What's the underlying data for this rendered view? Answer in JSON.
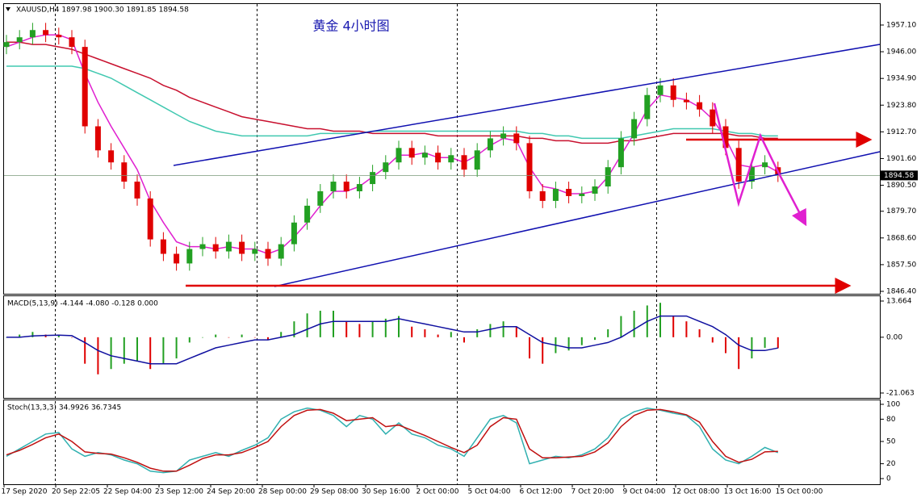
{
  "chart_data": [
    {
      "type": "candlestick",
      "title": "黄金  4小时图",
      "info": "XAUUSD,H4  1897.98 1900.30 1891.85 1894.58",
      "up_color": "#22a022",
      "down_color": "#e00000",
      "open": [
        1948,
        1950,
        1952,
        1955,
        1953,
        1952,
        1948,
        1915,
        1905,
        1900,
        1892,
        1885,
        1868,
        1862,
        1858,
        1864,
        1866,
        1863,
        1867,
        1862,
        1864,
        1860,
        1866,
        1875,
        1882,
        1888,
        1892,
        1888,
        1891,
        1896,
        1900,
        1906,
        1902,
        1904,
        1900,
        1903,
        1897,
        1905,
        1910,
        1912,
        1908,
        1888,
        1884,
        1889,
        1886,
        1887,
        1890,
        1898,
        1910,
        1918,
        1928,
        1932,
        1926,
        1925,
        1922,
        1915,
        1906,
        1892,
        1898,
        1897.98
      ],
      "high": [
        1953,
        1955,
        1958,
        1958,
        1956,
        1955,
        1951,
        1918,
        1908,
        1903,
        1895,
        1888,
        1871,
        1865,
        1867,
        1869,
        1869,
        1870,
        1870,
        1867,
        1867,
        1869,
        1878,
        1885,
        1891,
        1895,
        1895,
        1894,
        1899,
        1903,
        1909,
        1909,
        1907,
        1907,
        1906,
        1906,
        1908,
        1913,
        1915,
        1915,
        1911,
        1891,
        1892,
        1892,
        1890,
        1893,
        1901,
        1913,
        1921,
        1931,
        1935,
        1935,
        1929,
        1928,
        1925,
        1918,
        1909,
        1901,
        1903,
        1900.3
      ],
      "low": [
        1945,
        1947,
        1949,
        1950,
        1949,
        1945,
        1912,
        1902,
        1897,
        1889,
        1882,
        1865,
        1859,
        1855,
        1855,
        1861,
        1860,
        1860,
        1859,
        1859,
        1857,
        1857,
        1863,
        1872,
        1879,
        1885,
        1885,
        1885,
        1888,
        1893,
        1897,
        1899,
        1899,
        1897,
        1897,
        1894,
        1894,
        1902,
        1907,
        1905,
        1885,
        1881,
        1881,
        1883,
        1883,
        1884,
        1887,
        1895,
        1907,
        1915,
        1925,
        1923,
        1922,
        1919,
        1912,
        1903,
        1889,
        1889,
        1895,
        1891.85
      ],
      "close": [
        1950,
        1952,
        1955,
        1953,
        1952,
        1948,
        1915,
        1905,
        1900,
        1892,
        1885,
        1868,
        1862,
        1858,
        1864,
        1866,
        1863,
        1867,
        1862,
        1864,
        1860,
        1866,
        1875,
        1882,
        1888,
        1892,
        1888,
        1891,
        1896,
        1900,
        1906,
        1902,
        1904,
        1900,
        1903,
        1897,
        1905,
        1910,
        1912,
        1908,
        1888,
        1884,
        1889,
        1886,
        1887,
        1890,
        1898,
        1910,
        1918,
        1928,
        1932,
        1926,
        1925,
        1922,
        1915,
        1906,
        1892,
        1898,
        1900,
        1894.58
      ],
      "series": [
        {
          "color": "#c8102e",
          "values": [
            1950,
            1950,
            1949,
            1949,
            1948,
            1947,
            1945,
            1943,
            1941,
            1939,
            1937,
            1935,
            1932,
            1930,
            1927,
            1925,
            1923,
            1921,
            1919,
            1918,
            1917,
            1916,
            1915,
            1914,
            1914,
            1913,
            1913,
            1913,
            1912,
            1912,
            1912,
            1912,
            1912,
            1911,
            1911,
            1911,
            1911,
            1911,
            1911,
            1911,
            1910,
            1910,
            1909,
            1909,
            1908,
            1908,
            1908,
            1909,
            1909,
            1910,
            1911,
            1912,
            1912,
            1912,
            1912,
            1912,
            1911,
            1911,
            1910,
            1910
          ]
        },
        {
          "color": "#40c8b0",
          "values": [
            1940,
            1940,
            1940,
            1940,
            1940,
            1940,
            1939,
            1937,
            1935,
            1932,
            1929,
            1926,
            1923,
            1920,
            1917,
            1915,
            1913,
            1912,
            1911,
            1911,
            1911,
            1911,
            1911,
            1911,
            1912,
            1912,
            1912,
            1912,
            1913,
            1913,
            1913,
            1913,
            1913,
            1913,
            1913,
            1913,
            1913,
            1913,
            1913,
            1913,
            1912,
            1912,
            1911,
            1911,
            1910,
            1910,
            1910,
            1910,
            1911,
            1912,
            1913,
            1914,
            1914,
            1914,
            1914,
            1913,
            1912,
            1912,
            1911,
            1911
          ]
        },
        {
          "color": "#e020d0",
          "values": [
            1948,
            1950,
            1952,
            1953,
            1953,
            1951,
            1937,
            1925,
            1915,
            1906,
            1897,
            1884,
            1875,
            1867,
            1865,
            1865,
            1864,
            1865,
            1864,
            1864,
            1862,
            1864,
            1869,
            1875,
            1882,
            1888,
            1888,
            1890,
            1894,
            1898,
            1903,
            1903,
            1904,
            1902,
            1902,
            1900,
            1903,
            1907,
            1910,
            1909,
            1898,
            1890,
            1889,
            1887,
            1887,
            1888,
            1894,
            1903,
            1912,
            1922,
            1928,
            1927,
            1926,
            1923,
            1918,
            1910,
            1899,
            1898,
            1899,
            1896
          ]
        }
      ],
      "ylim": [
        1845.73,
        1965.82
      ],
      "yticks": [
        {
          "value": 1957.1,
          "label": "1957.10"
        },
        {
          "value": 1946,
          "label": "1946.00"
        },
        {
          "value": 1934.9,
          "label": "1934.90"
        },
        {
          "value": 1923.8,
          "label": "1923.80"
        },
        {
          "value": 1912.7,
          "label": "1912.70"
        },
        {
          "value": 1901.6,
          "label": "1901.60"
        },
        {
          "value": 1890.5,
          "label": "1890.50"
        },
        {
          "value": 1879.7,
          "label": "1879.70"
        },
        {
          "value": 1868.6,
          "label": "1868.60"
        },
        {
          "value": 1857.5,
          "label": "1857.50"
        },
        {
          "value": 1846.4,
          "label": "1846.40"
        }
      ]
    },
    {
      "type": "macd",
      "label": "MACD(5,13,9) -4.144 -4.080 -0.128 0.000",
      "up_color": "#22a022",
      "down_color": "#e00000",
      "values": [
        0,
        1,
        2,
        1,
        1,
        0,
        -10,
        -14,
        -12,
        -10,
        -9,
        -12,
        -10,
        -8,
        -2,
        0,
        1,
        0,
        1,
        0,
        -1,
        2,
        6,
        9,
        10,
        10,
        6,
        5,
        6,
        7,
        8,
        4,
        3,
        1,
        2,
        -2,
        3,
        5,
        6,
        4,
        -8,
        -10,
        -6,
        -5,
        -3,
        -1,
        3,
        8,
        10,
        12,
        13,
        8,
        6,
        3,
        -2,
        -6,
        -12,
        -8,
        -4,
        -4.144
      ],
      "series": [
        {
          "color": "#1010a0",
          "values": [
            0,
            0,
            0.5,
            0.7,
            0.8,
            0.6,
            -2,
            -5,
            -7,
            -8,
            -9,
            -10,
            -10,
            -10,
            -8,
            -6,
            -4,
            -3,
            -2,
            -1,
            -1,
            0,
            1,
            3,
            5,
            6,
            6,
            6,
            6,
            6,
            7,
            6,
            5,
            4,
            3,
            2,
            2,
            3,
            4,
            4,
            1,
            -2,
            -3,
            -4,
            -4,
            -3,
            -2,
            0,
            3,
            6,
            8,
            8,
            8,
            6,
            4,
            1,
            -3,
            -5,
            -5,
            -4.08
          ]
        }
      ],
      "ylim": [
        -22.9,
        15.8
      ],
      "yticks": [
        13.664,
        {
          "value": 0,
          "label": "0.00"
        },
        -21.063
      ]
    },
    {
      "type": "stoch",
      "label": "Stoch(13,3,3) 34.9926 36.7345",
      "series": [
        {
          "color": "#30b0b0",
          "values": [
            30,
            40,
            50,
            60,
            62,
            40,
            30,
            35,
            32,
            25,
            20,
            10,
            8,
            10,
            25,
            30,
            35,
            30,
            38,
            45,
            55,
            80,
            90,
            95,
            92,
            85,
            70,
            85,
            80,
            60,
            75,
            60,
            55,
            45,
            40,
            30,
            55,
            80,
            85,
            75,
            20,
            25,
            30,
            28,
            32,
            40,
            55,
            80,
            90,
            95,
            92,
            88,
            85,
            70,
            40,
            25,
            20,
            30,
            42,
            34.9926
          ]
        },
        {
          "color": "#c01010",
          "values": [
            32,
            38,
            46,
            55,
            60,
            50,
            36,
            34,
            33,
            28,
            22,
            14,
            10,
            10,
            18,
            27,
            32,
            32,
            35,
            42,
            50,
            70,
            85,
            92,
            93,
            88,
            78,
            80,
            82,
            70,
            72,
            65,
            58,
            50,
            42,
            35,
            45,
            70,
            82,
            80,
            40,
            28,
            28,
            29,
            30,
            36,
            48,
            70,
            85,
            92,
            93,
            90,
            86,
            76,
            50,
            30,
            22,
            26,
            36,
            36.7345
          ]
        }
      ],
      "ylim": [
        -7.6,
        105.4
      ],
      "yticks": [
        100,
        80,
        50,
        20,
        0
      ]
    }
  ],
  "time_axis": {
    "labels": [
      "17 Sep 2020",
      "20 Sep 22:05",
      "22 Sep 04:00",
      "23 Sep 12:00",
      "24 Sep 20:00",
      "28 Sep 00:00",
      "29 Sep 08:00",
      "30 Sep 16:00",
      "2 Oct 00:00",
      "5 Oct 04:00",
      "6 Oct 12:00",
      "7 Oct 20:00",
      "9 Oct 04:00",
      "12 Oct 08:00",
      "13 Oct 16:00",
      "15 Oct 00:00"
    ]
  }
}
